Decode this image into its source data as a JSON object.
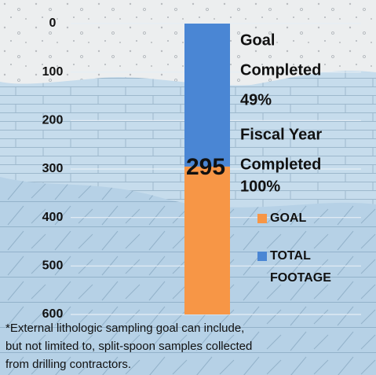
{
  "chart_data": {
    "type": "bar",
    "stacked": true,
    "categories": [
      null
    ],
    "series": [
      {
        "name": "TOTAL FOOTAGE",
        "color": "#4a86d4",
        "values": [
          295
        ]
      },
      {
        "name": "GOAL",
        "color": "#f79646",
        "values": [
          305
        ]
      }
    ],
    "ylim": [
      0,
      600
    ],
    "y_inverted": true,
    "yticks": [
      0,
      100,
      200,
      300,
      400,
      500,
      600
    ],
    "grid": true,
    "legend": "right",
    "annotations": [
      [
        "Goal",
        "Completed",
        "49%"
      ],
      [
        "Fiscal Year",
        "Completed",
        "100%"
      ]
    ],
    "footnote": [
      "*External lithologic sampling goal can include,",
      "but not limited to, split-spoon samples collected",
      "from drilling contractors."
    ]
  }
}
